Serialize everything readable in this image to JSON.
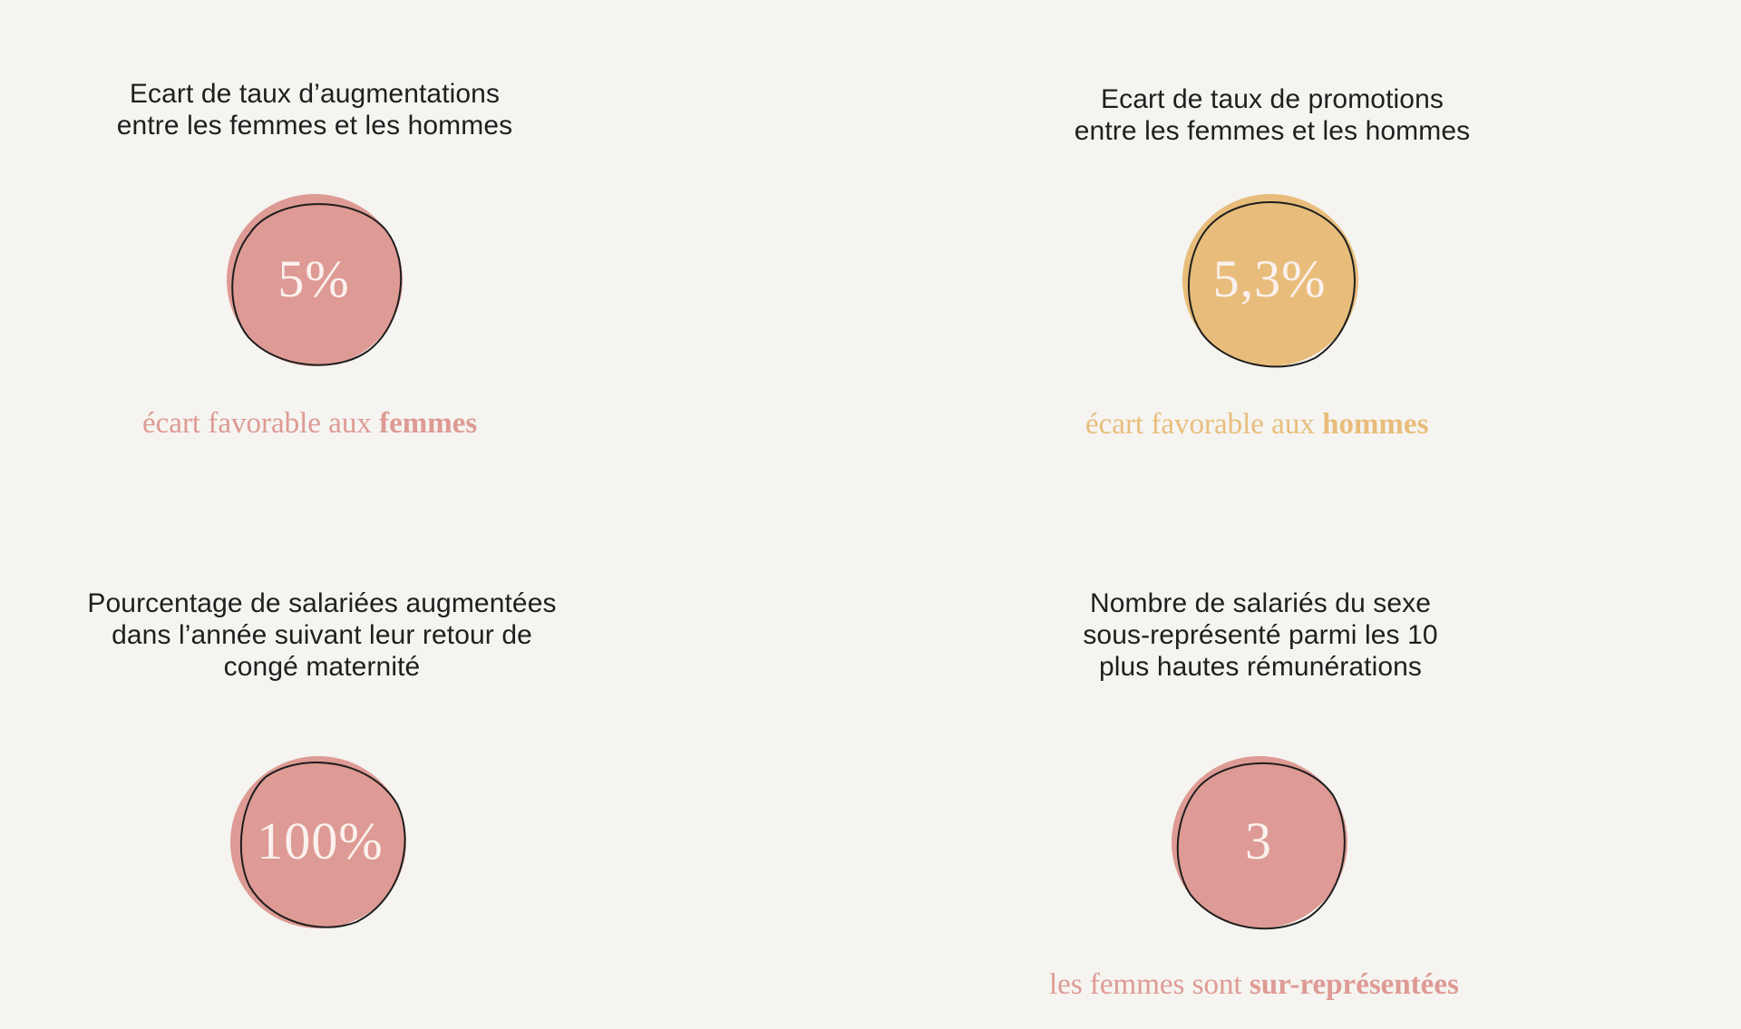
{
  "colors": {
    "background": "#f5f4f0",
    "pink": "#de9a94",
    "gold": "#e8bd7b",
    "outline": "#1e1e1e",
    "value_text": "#fbf1ee"
  },
  "indicators": [
    {
      "title": "Ecart de taux d’augmentations\nentre les femmes et les hommes",
      "value": "5%",
      "color": "pink",
      "note_prefix": "écart favorable aux ",
      "note_bold": "femmes"
    },
    {
      "title": "Ecart de taux de promotions\nentre les femmes et les hommes",
      "value": "5,3%",
      "color": "gold",
      "note_prefix": "écart favorable aux ",
      "note_bold": "hommes"
    },
    {
      "title": "Pourcentage de salariées augmentées\ndans l’année suivant leur retour de\ncongé maternité",
      "value": "100%",
      "color": "pink",
      "note_prefix": "",
      "note_bold": ""
    },
    {
      "title": "Nombre de salariés du sexe\nsous-représenté parmi les 10\nplus hautes rémunérations",
      "value": "3",
      "color": "pink",
      "note_prefix": "les femmes sont ",
      "note_bold": "sur-représentées"
    }
  ]
}
